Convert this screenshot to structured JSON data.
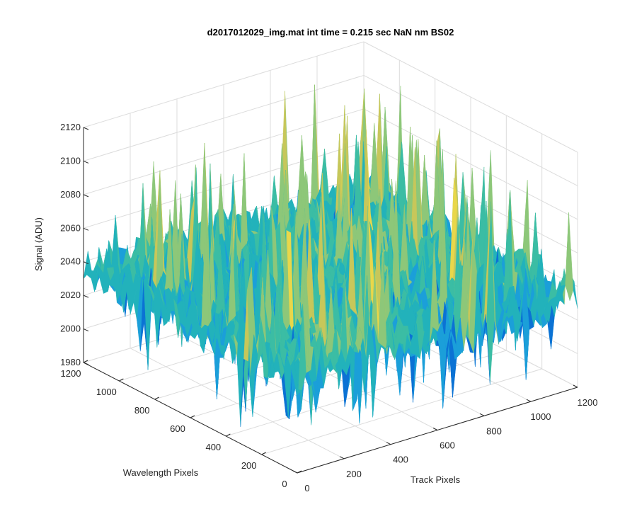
{
  "chart_data": {
    "type": "surface",
    "title": "d2017012029_img.mat int time = 0.215 sec  NaN nm BS02",
    "xlabel": "Track Pixels",
    "ylabel": "Wavelength Pixels",
    "zlabel": "Signal (ADU)",
    "x_ticks": [
      "0",
      "200",
      "400",
      "600",
      "800",
      "1000",
      "1200"
    ],
    "y_ticks": [
      "0",
      "200",
      "400",
      "600",
      "800",
      "1000",
      "1200"
    ],
    "z_ticks": [
      "1980",
      "2000",
      "2020",
      "2040",
      "2060",
      "2080",
      "2100",
      "2120"
    ],
    "xlim": [
      0,
      1200
    ],
    "ylim": [
      0,
      1200
    ],
    "zlim": [
      1980,
      2120
    ],
    "grid": true,
    "surface": {
      "baseline_signal": 2035,
      "noise_range": [
        1990,
        2105
      ],
      "colormap": "parula",
      "colors": [
        "#0b72d4",
        "#1b9fd9",
        "#22b2bb",
        "#3bbda4",
        "#8dc779",
        "#c7c75a",
        "#e9d74a"
      ]
    }
  }
}
